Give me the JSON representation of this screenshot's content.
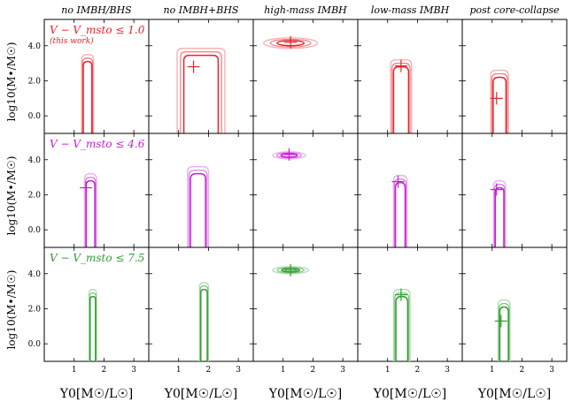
{
  "chart_data": {
    "type": "contour-grid",
    "column_titles": [
      "no IMBH/BHS",
      "no IMBH+BHS",
      "high-mass IMBH",
      "low-mass IMBH",
      "post core-collapse"
    ],
    "row_labels": [
      {
        "label": "V − V_msto ≤ 1.0",
        "sublabel": "(this work)",
        "color": "#e8232b"
      },
      {
        "label": "V − V_msto ≤ 4.6",
        "sublabel": "",
        "color": "#c51fd2"
      },
      {
        "label": "V − V_msto ≤ 7.5",
        "sublabel": "",
        "color": "#2e9e2e"
      }
    ],
    "ylabel": "log10(M•/M☉)",
    "xlabel": "Υ0[M☉/L☉]",
    "xlim": [
      0,
      3.5
    ],
    "ylim": [
      -1,
      5.5
    ],
    "xticks": [
      1,
      2,
      3
    ],
    "yticks": [
      0.0,
      2.0,
      4.0
    ],
    "panels": [
      [
        {
          "marker": null,
          "contour": {
            "x0": 1.25,
            "x1": 1.65,
            "top": 3.5,
            "bottom": -1.0,
            "shape": "column"
          }
        },
        {
          "marker": {
            "x": 1.5,
            "y": 2.8
          },
          "contour": {
            "x0": 0.95,
            "x1": 2.55,
            "top": 3.85,
            "bottom": -1.0,
            "shape": "column"
          }
        },
        {
          "marker": {
            "x": 1.25,
            "y": 4.2
          },
          "contour": {
            "cx": 1.25,
            "cy": 4.15,
            "rx": 0.9,
            "ry": 0.3,
            "shape": "ellipse"
          }
        },
        {
          "marker": {
            "x": 1.45,
            "y": 2.85
          },
          "contour": {
            "x0": 1.1,
            "x1": 1.8,
            "top": 3.2,
            "bottom": -1.0,
            "shape": "column"
          }
        },
        {
          "marker": {
            "x": 1.15,
            "y": 1.0
          },
          "contour": {
            "x0": 0.95,
            "x1": 1.55,
            "top": 2.6,
            "bottom": -1.0,
            "shape": "column"
          }
        }
      ],
      [
        {
          "marker": {
            "x": 1.4,
            "y": 2.4
          },
          "contour": {
            "x0": 1.35,
            "x1": 1.75,
            "top": 3.2,
            "bottom": -1.0,
            "shape": "column"
          }
        },
        {
          "marker": null,
          "contour": {
            "x0": 1.3,
            "x1": 2.0,
            "top": 3.6,
            "bottom": -1.0,
            "shape": "column"
          }
        },
        {
          "marker": {
            "x": 1.2,
            "y": 4.3
          },
          "contour": {
            "cx": 1.2,
            "cy": 4.25,
            "rx": 0.55,
            "ry": 0.2,
            "shape": "ellipse"
          }
        },
        {
          "marker": {
            "x": 1.35,
            "y": 2.75
          },
          "contour": {
            "x0": 1.2,
            "x1": 1.65,
            "top": 3.1,
            "bottom": -1.0,
            "shape": "column"
          }
        },
        {
          "marker": {
            "x": 1.15,
            "y": 2.3
          },
          "contour": {
            "x0": 1.05,
            "x1": 1.45,
            "top": 2.8,
            "bottom": -1.0,
            "shape": "column"
          }
        }
      ],
      [
        {
          "marker": null,
          "contour": {
            "x0": 1.5,
            "x1": 1.75,
            "top": 3.1,
            "bottom": -1.0,
            "shape": "column"
          }
        },
        {
          "marker": null,
          "contour": {
            "x0": 1.7,
            "x1": 2.0,
            "top": 3.5,
            "bottom": -1.0,
            "shape": "column"
          }
        },
        {
          "marker": {
            "x": 1.25,
            "y": 4.2
          },
          "contour": {
            "cx": 1.25,
            "cy": 4.2,
            "rx": 0.6,
            "ry": 0.2,
            "shape": "ellipse"
          }
        },
        {
          "marker": {
            "x": 1.45,
            "y": 2.8
          },
          "contour": {
            "x0": 1.2,
            "x1": 1.75,
            "top": 3.1,
            "bottom": -1.0,
            "shape": "column"
          }
        },
        {
          "marker": {
            "x": 1.3,
            "y": 1.3
          },
          "contour": {
            "x0": 1.2,
            "x1": 1.6,
            "top": 2.5,
            "bottom": -1.0,
            "shape": "column"
          }
        }
      ]
    ]
  }
}
